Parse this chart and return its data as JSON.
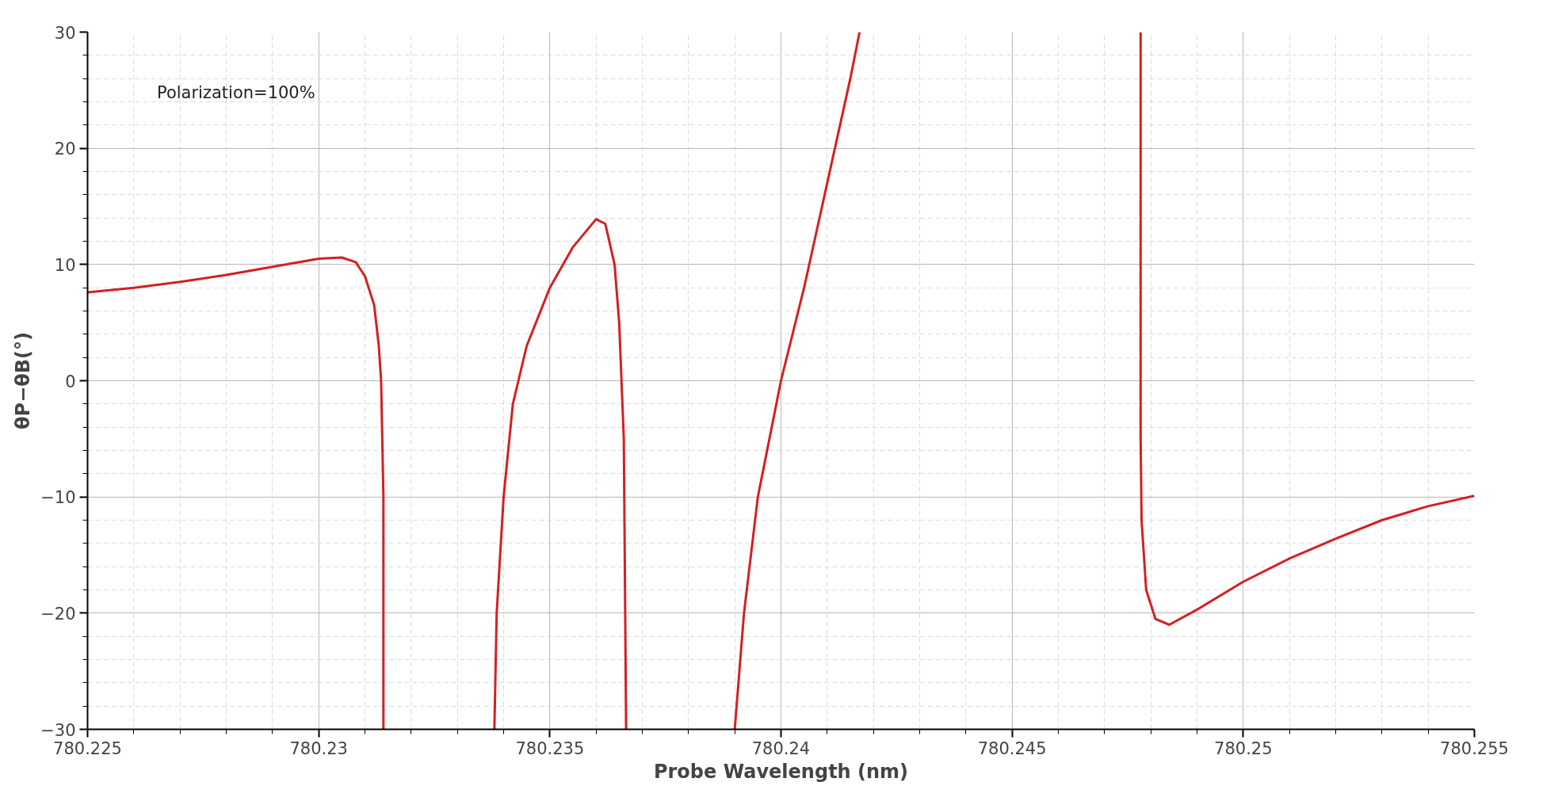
{
  "chart_data": {
    "type": "line",
    "xlabel": "Probe Wavelength (nm)",
    "ylabel": "θP−θB(°)",
    "annotations": [
      "Polarization=100%"
    ],
    "x": [
      780.225,
      780.226,
      780.227,
      780.228,
      780.229,
      780.23,
      780.2305,
      780.2308,
      780.231,
      780.2312,
      780.2313,
      780.23135,
      780.2314,
      780.2314,
      780.2326,
      780.2338,
      780.23385,
      780.234,
      780.2342,
      780.2345,
      780.235,
      780.2355,
      780.236,
      780.2362,
      780.2364,
      780.2365,
      780.2366,
      780.23665,
      780.2378,
      780.239,
      780.2392,
      780.2395,
      780.24,
      780.2405,
      780.241,
      780.2415,
      780.2417,
      780.2447,
      780.24778,
      780.24778,
      780.2478,
      780.2479,
      780.2481,
      780.2484,
      780.249,
      780.25,
      780.251,
      780.252,
      780.253,
      780.254,
      780.255
    ],
    "series": [
      {
        "color": "#d42020",
        "values": [
          7.6,
          8.0,
          8.5,
          9.1,
          9.8,
          10.5,
          10.6,
          10.2,
          9.0,
          6.5,
          3,
          0,
          -10,
          -30,
          null,
          -30,
          -20,
          -10,
          -2,
          3,
          8,
          11.5,
          13.9,
          13.5,
          10,
          5,
          -5,
          -30,
          null,
          -30,
          -20,
          -10,
          0,
          8,
          17,
          26,
          30,
          null,
          30,
          -5,
          -12,
          -18,
          -20.5,
          -21,
          -19.7,
          -17.3,
          -15.3,
          -13.6,
          -12.0,
          -10.8,
          -9.9
        ]
      }
    ],
    "xlim": [
      780.225,
      780.255
    ],
    "ylim": [
      -30,
      30
    ],
    "xticks": [
      780.225,
      780.23,
      780.235,
      780.24,
      780.245,
      780.25,
      780.255
    ],
    "yticks": [
      {
        "value": -30,
        "label": "−30"
      },
      {
        "value": -20,
        "label": "−20"
      },
      {
        "value": -10,
        "label": "−10"
      },
      0,
      10,
      20,
      30
    ],
    "grid": true,
    "marker": "none",
    "line_style": "solid"
  }
}
